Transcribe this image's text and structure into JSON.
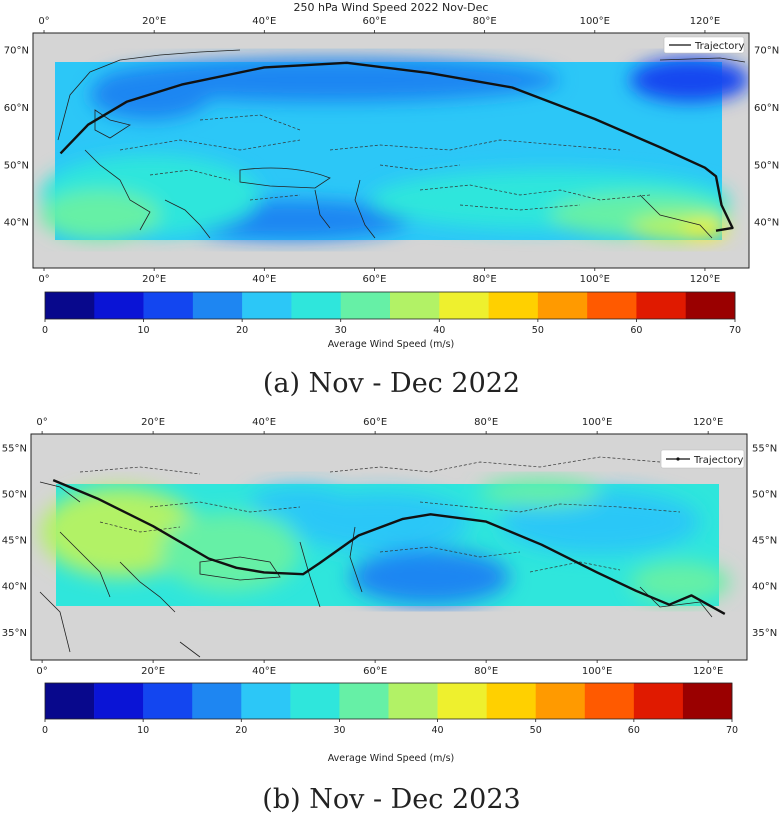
{
  "maps": [
    {
      "id": "a",
      "title": "250 hPa Wind Speed 2022 Nov-Dec",
      "caption": "(a) Nov - Dec 2022",
      "legend_label": "Trajectory",
      "lon_ticks": [
        "0°",
        "20°E",
        "40°E",
        "60°E",
        "80°E",
        "100°E",
        "120°E"
      ],
      "lat_ticks": [
        "70°N",
        "60°N",
        "50°N",
        "40°N"
      ],
      "lat_values": [
        70,
        60,
        50,
        40
      ],
      "lon_range": [
        -2,
        128
      ],
      "lat_range": [
        32,
        73
      ],
      "data_extent": {
        "lon": [
          3,
          125
        ],
        "lat": [
          37,
          67.5
        ]
      },
      "trajectory": [
        [
          3,
          52
        ],
        [
          8,
          57
        ],
        [
          15,
          61
        ],
        [
          25,
          64
        ],
        [
          40,
          67
        ],
        [
          55,
          67.8
        ],
        [
          70,
          66
        ],
        [
          85,
          63.5
        ],
        [
          100,
          58
        ],
        [
          112,
          53
        ],
        [
          120,
          49.5
        ],
        [
          122,
          48
        ],
        [
          123,
          43
        ],
        [
          125,
          39
        ],
        [
          122,
          38.5
        ]
      ],
      "colorbar": {
        "label": "Average Wind Speed (m/s)",
        "ticks": [
          "0",
          "10",
          "20",
          "30",
          "40",
          "50",
          "60",
          "70"
        ]
      }
    },
    {
      "id": "b",
      "title": "",
      "caption": "(b) Nov - Dec 2023",
      "legend_label": "Trajectory",
      "lon_ticks": [
        "0°",
        "20°E",
        "40°E",
        "60°E",
        "80°E",
        "100°E",
        "120°E"
      ],
      "lat_ticks": [
        "55°N",
        "50°N",
        "45°N",
        "40°N",
        "35°N"
      ],
      "lat_values": [
        55,
        50,
        45,
        40,
        35
      ],
      "lon_range": [
        -2,
        127
      ],
      "lat_range": [
        32,
        56.5
      ],
      "data_extent": {
        "lon": [
          3,
          123
        ],
        "lat": [
          37,
          51.5
        ]
      },
      "trajectory": [
        [
          2,
          51.5
        ],
        [
          10,
          49.5
        ],
        [
          20,
          46.5
        ],
        [
          30,
          43
        ],
        [
          35,
          42
        ],
        [
          40,
          41.5
        ],
        [
          47,
          41.3
        ],
        [
          50,
          42.5
        ],
        [
          57,
          45.5
        ],
        [
          65,
          47.3
        ],
        [
          70,
          47.8
        ],
        [
          80,
          47
        ],
        [
          90,
          44.5
        ],
        [
          100,
          41.5
        ],
        [
          107,
          39.5
        ],
        [
          113,
          38
        ],
        [
          117,
          39
        ],
        [
          123,
          37
        ]
      ],
      "colorbar": {
        "label": "Average Wind Speed (m/s)",
        "ticks": [
          "0",
          "10",
          "20",
          "30",
          "40",
          "50",
          "60",
          "70"
        ]
      }
    }
  ],
  "colors": {
    "ocean": "#d5d5d5",
    "frame": "#222222",
    "trajectory": "#111111",
    "colorbar_bins": [
      "#08088c",
      "#0a14d6",
      "#1346f0",
      "#1e86f2",
      "#2cc7f7",
      "#2fe6dc",
      "#66f0a6",
      "#b2f266",
      "#eef02e",
      "#ffd000",
      "#ff9a00",
      "#ff5a00",
      "#e01a00",
      "#9a0000"
    ]
  }
}
